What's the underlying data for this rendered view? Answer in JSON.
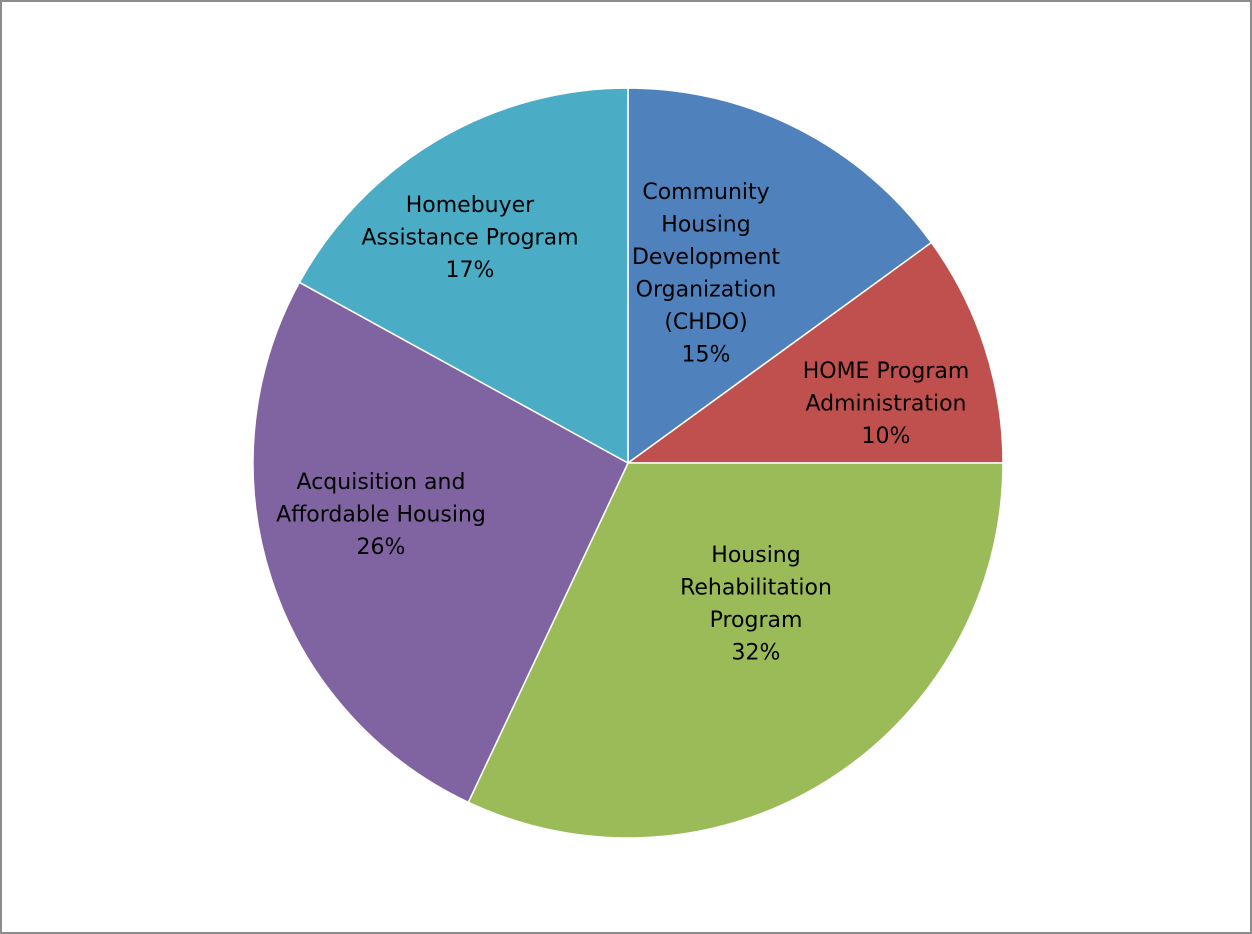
{
  "chart_data": {
    "type": "pie",
    "start_angle_deg": 0,
    "direction": "clockwise",
    "slices": [
      {
        "name": "Community Housing Development Organization (CHDO)",
        "label_lines": [
          "Community",
          "Housing",
          "Development",
          "Organization",
          "(CHDO)",
          "15%"
        ],
        "value": 15,
        "color": "#4f81bd"
      },
      {
        "name": "HOME Program Administration",
        "label_lines": [
          "HOME Program",
          "Administration",
          "10%"
        ],
        "value": 10,
        "color": "#c0504d"
      },
      {
        "name": "Housing Rehabilitation Program",
        "label_lines": [
          "Housing",
          "Rehabilitation",
          "Program",
          "32%"
        ],
        "value": 32,
        "color": "#9bbb59"
      },
      {
        "name": "Acquisition and Affordable Housing",
        "label_lines": [
          "Acquisition and",
          "Affordable Housing",
          "26%"
        ],
        "value": 26,
        "color": "#8064a2"
      },
      {
        "name": "Homebuyer Assistance Program",
        "label_lines": [
          "Homebuyer",
          "Assistance Program",
          "17%"
        ],
        "value": 17,
        "color": "#4bacc6"
      }
    ]
  }
}
